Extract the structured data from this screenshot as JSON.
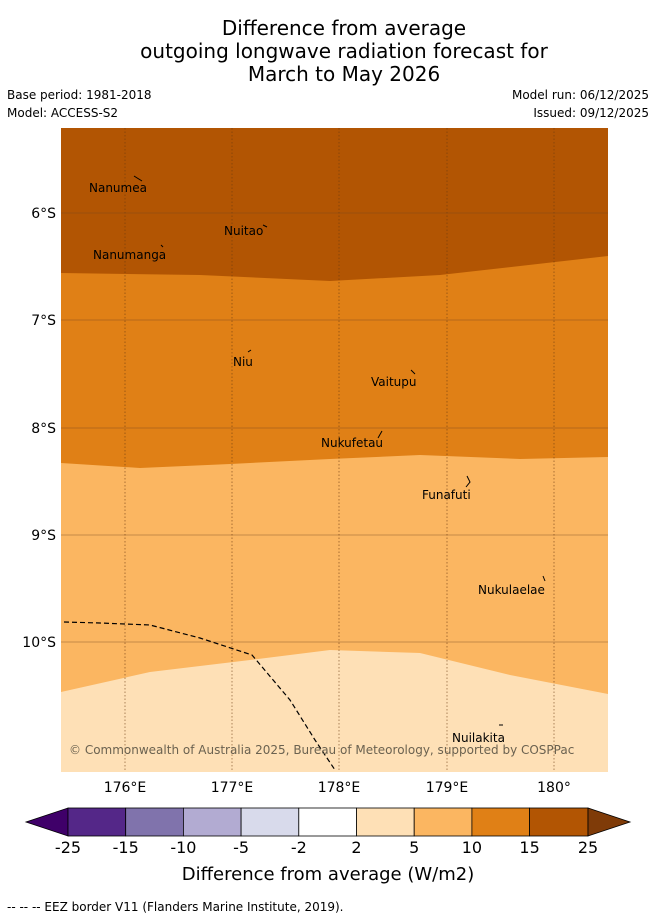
{
  "header": {
    "title_line1": "Difference from average",
    "title_line2": "outgoing longwave radiation forecast for",
    "title_line3": "March to May 2026",
    "base_period": "Base period: 1981-2018",
    "model": "Model: ACCESS-S2",
    "model_run": "Model run: 06/12/2025",
    "issued": "Issued: 09/12/2025"
  },
  "map": {
    "lon_ticks": [
      "176°E",
      "177°E",
      "178°E",
      "179°E",
      "180°"
    ],
    "lat_ticks": [
      "6°S",
      "7°S",
      "8°S",
      "9°S",
      "10°S"
    ],
    "places": [
      "Nanumea",
      "Nuitao",
      "Nanumanga",
      "Niu",
      "Vaitupu",
      "Nukufetau",
      "Funafuti",
      "Nukulaelae",
      "Nuilakita"
    ],
    "copyright": "© Commonwealth of Australia 2025, Bureau of Meteorology, supported by COSPPac",
    "colors": {
      "band_15_25": "#b25503",
      "band_10_15": "#e08016",
      "band_5_10": "#fbb661",
      "band_2_5": "#fee0b6"
    }
  },
  "colorbar": {
    "labels": [
      "-25",
      "-15",
      "-10",
      "-5",
      "-2",
      "2",
      "5",
      "10",
      "15",
      "25"
    ],
    "colors": [
      "#3f0069",
      "#542788",
      "#8073ac",
      "#b2abd2",
      "#d8daeb",
      "#ffffff",
      "#fee0b6",
      "#fbb661",
      "#e08016",
      "#b25503",
      "#7f3b08"
    ],
    "title": "Difference from average (W/m2)"
  },
  "footer": {
    "legend": "--  --  -- EEZ border V11 (Flanders Marine Institute, 2019)."
  }
}
